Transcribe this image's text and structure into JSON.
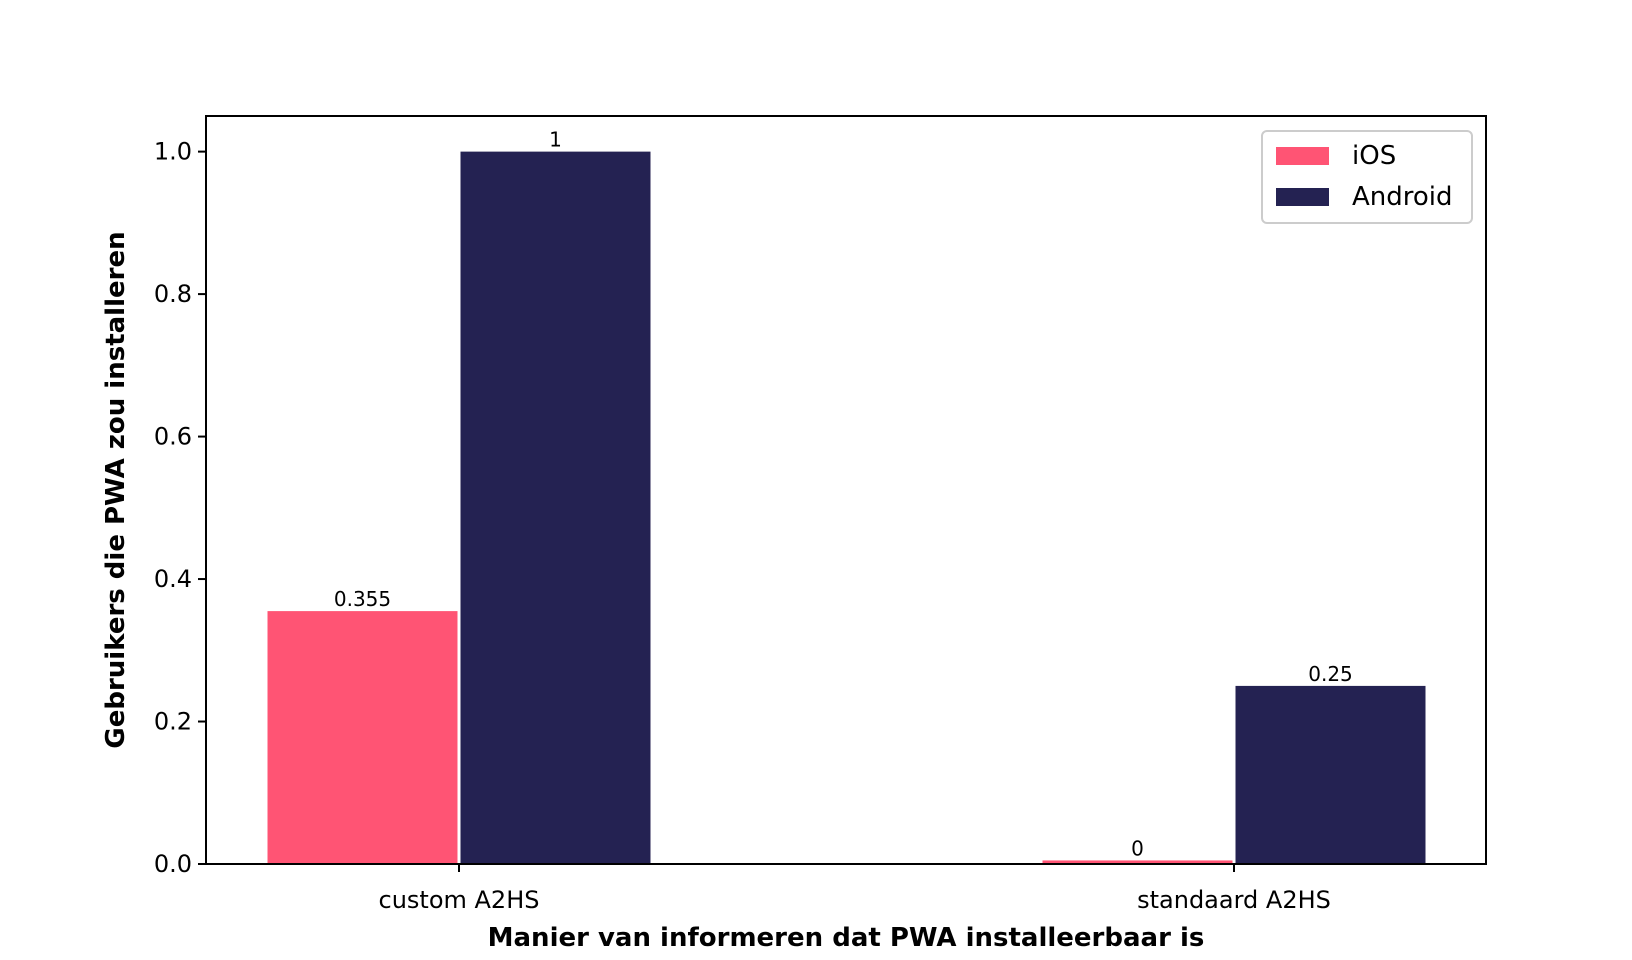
{
  "chart_data": {
    "type": "bar",
    "title": "",
    "xlabel": "Manier van informeren dat PWA installeerbaar is",
    "ylabel": "Gebruikers die PWA zou installeren",
    "categories": [
      "custom A2HS",
      "standaard A2HS"
    ],
    "series": [
      {
        "name": "iOS",
        "values": [
          0.355,
          0.005
        ],
        "labels": [
          "0.355",
          "0"
        ],
        "color": "#ff5474"
      },
      {
        "name": "Android",
        "values": [
          1.0,
          0.25
        ],
        "labels": [
          "1",
          "0.25"
        ],
        "color": "#242252"
      }
    ],
    "ylim": [
      0,
      1.05
    ],
    "yticks": [
      0.0,
      0.2,
      0.4,
      0.6,
      0.8,
      1.0
    ],
    "ytick_labels": [
      "0.0",
      "0.2",
      "0.4",
      "0.6",
      "0.8",
      "1.0"
    ],
    "grid": false,
    "legend_position": "top-right"
  }
}
